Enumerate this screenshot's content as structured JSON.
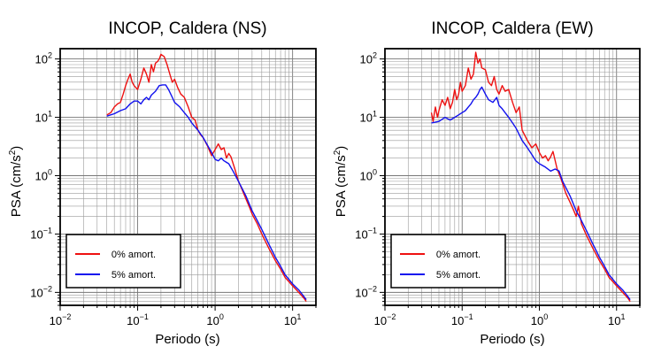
{
  "chart_data": [
    {
      "type": "line",
      "title": "INCOP, Caldera (NS)",
      "xlabel": "Periodo (s)",
      "ylabel": "PSA (cm/s",
      "ylabel_sup": "2",
      "ylabel_close": ")",
      "x_scale": "log",
      "y_scale": "log",
      "xlim": [
        0.01,
        20
      ],
      "ylim": [
        0.006,
        150
      ],
      "x_ticks": [
        {
          "value": 0.01,
          "base": "10",
          "exp": "−2"
        },
        {
          "value": 0.1,
          "base": "10",
          "exp": "−1"
        },
        {
          "value": 1,
          "base": "10",
          "exp": "0"
        },
        {
          "value": 10,
          "base": "10",
          "exp": "1"
        }
      ],
      "y_ticks": [
        {
          "value": 0.01,
          "base": "10",
          "exp": "−2"
        },
        {
          "value": 0.1,
          "base": "10",
          "exp": "−1"
        },
        {
          "value": 1,
          "base": "10",
          "exp": "0"
        },
        {
          "value": 10,
          "base": "10",
          "exp": "1"
        },
        {
          "value": 100,
          "base": "10",
          "exp": "2"
        }
      ],
      "grid": true,
      "legend": "bottom-left",
      "series": [
        {
          "name": "0% amort.",
          "color": "#ee1111",
          "x": [
            0.04,
            0.045,
            0.05,
            0.055,
            0.06,
            0.065,
            0.07,
            0.075,
            0.08,
            0.085,
            0.09,
            0.1,
            0.11,
            0.12,
            0.13,
            0.14,
            0.15,
            0.16,
            0.17,
            0.18,
            0.19,
            0.2,
            0.22,
            0.24,
            0.26,
            0.28,
            0.3,
            0.33,
            0.36,
            0.4,
            0.45,
            0.5,
            0.55,
            0.6,
            0.65,
            0.7,
            0.8,
            0.9,
            1.0,
            1.1,
            1.2,
            1.3,
            1.4,
            1.5,
            1.6,
            1.8,
            2.0,
            2.2,
            2.5,
            2.8,
            3,
            3.5,
            4,
            5,
            6,
            7,
            8,
            10,
            12,
            14,
            15
          ],
          "y": [
            11,
            12,
            15,
            17,
            18,
            25,
            35,
            45,
            55,
            40,
            35,
            30,
            45,
            70,
            55,
            40,
            80,
            60,
            85,
            90,
            100,
            120,
            110,
            80,
            55,
            40,
            45,
            32,
            25,
            22,
            15,
            10,
            9,
            6,
            5,
            4.5,
            3.2,
            2.2,
            2.8,
            3.5,
            2.8,
            3.0,
            2.0,
            2.4,
            2.1,
            1.3,
            0.8,
            0.6,
            0.4,
            0.28,
            0.22,
            0.15,
            0.1,
            0.055,
            0.035,
            0.025,
            0.018,
            0.013,
            0.01,
            0.008,
            0.007
          ]
        },
        {
          "name": "5% amort.",
          "color": "#1111ee",
          "x": [
            0.04,
            0.05,
            0.06,
            0.07,
            0.08,
            0.09,
            0.1,
            0.11,
            0.12,
            0.13,
            0.14,
            0.15,
            0.17,
            0.19,
            0.21,
            0.23,
            0.25,
            0.28,
            0.3,
            0.35,
            0.4,
            0.45,
            0.5,
            0.6,
            0.7,
            0.8,
            0.9,
            1.0,
            1.1,
            1.2,
            1.3,
            1.5,
            1.7,
            2.0,
            2.5,
            3,
            3.5,
            4,
            5,
            6,
            7,
            8,
            10,
            12,
            14,
            15
          ],
          "y": [
            10.5,
            11.5,
            13,
            14,
            17,
            19,
            19,
            17,
            20,
            22,
            20,
            24,
            28,
            35,
            36,
            36,
            30,
            22,
            18,
            15,
            12,
            10,
            8,
            6,
            4.5,
            3.3,
            2.5,
            1.9,
            1.8,
            2.0,
            1.8,
            1.6,
            1.2,
            0.8,
            0.45,
            0.25,
            0.17,
            0.12,
            0.065,
            0.04,
            0.028,
            0.02,
            0.014,
            0.011,
            0.0085,
            0.0075
          ]
        }
      ]
    },
    {
      "type": "line",
      "title": "INCOP, Caldera (EW)",
      "xlabel": "Periodo (s)",
      "ylabel": "PSA (cm/s",
      "ylabel_sup": "2",
      "ylabel_close": ")",
      "x_scale": "log",
      "y_scale": "log",
      "xlim": [
        0.01,
        20
      ],
      "ylim": [
        0.006,
        150
      ],
      "x_ticks": [
        {
          "value": 0.01,
          "base": "10",
          "exp": "−2"
        },
        {
          "value": 0.1,
          "base": "10",
          "exp": "−1"
        },
        {
          "value": 1,
          "base": "10",
          "exp": "0"
        },
        {
          "value": 10,
          "base": "10",
          "exp": "1"
        }
      ],
      "y_ticks": [
        {
          "value": 0.01,
          "base": "10",
          "exp": "−2"
        },
        {
          "value": 0.1,
          "base": "10",
          "exp": "−1"
        },
        {
          "value": 1,
          "base": "10",
          "exp": "0"
        },
        {
          "value": 10,
          "base": "10",
          "exp": "1"
        },
        {
          "value": 100,
          "base": "10",
          "exp": "2"
        }
      ],
      "grid": true,
      "legend": "bottom-left",
      "series": [
        {
          "name": "0% amort.",
          "color": "#ee1111",
          "x": [
            0.04,
            0.042,
            0.045,
            0.048,
            0.05,
            0.055,
            0.06,
            0.065,
            0.07,
            0.075,
            0.08,
            0.085,
            0.09,
            0.095,
            0.1,
            0.11,
            0.12,
            0.13,
            0.14,
            0.15,
            0.16,
            0.17,
            0.18,
            0.2,
            0.22,
            0.24,
            0.26,
            0.28,
            0.3,
            0.33,
            0.36,
            0.4,
            0.45,
            0.5,
            0.55,
            0.6,
            0.7,
            0.8,
            0.9,
            1.0,
            1.1,
            1.2,
            1.3,
            1.4,
            1.5,
            1.7,
            1.9,
            2.2,
            2.5,
            2.8,
            3,
            3.2,
            3.5,
            4,
            5,
            6,
            7,
            8,
            10,
            12,
            14,
            15
          ],
          "y": [
            12,
            8.5,
            15,
            10,
            13,
            20,
            16,
            22,
            14,
            18,
            30,
            20,
            25,
            40,
            28,
            35,
            70,
            45,
            55,
            130,
            85,
            100,
            70,
            65,
            40,
            35,
            50,
            30,
            25,
            35,
            28,
            30,
            18,
            12,
            15,
            6,
            4,
            3,
            3.5,
            2.5,
            2.0,
            2.2,
            1.8,
            2.1,
            2.6,
            1.3,
            0.9,
            0.5,
            0.35,
            0.25,
            0.2,
            0.3,
            0.15,
            0.1,
            0.055,
            0.035,
            0.025,
            0.018,
            0.013,
            0.01,
            0.008,
            0.007
          ]
        },
        {
          "name": "5% amort.",
          "color": "#1111ee",
          "x": [
            0.04,
            0.05,
            0.06,
            0.07,
            0.08,
            0.09,
            0.1,
            0.11,
            0.12,
            0.13,
            0.14,
            0.15,
            0.16,
            0.17,
            0.18,
            0.2,
            0.22,
            0.25,
            0.28,
            0.3,
            0.33,
            0.36,
            0.4,
            0.45,
            0.5,
            0.6,
            0.7,
            0.8,
            0.9,
            1.0,
            1.2,
            1.4,
            1.6,
            1.8,
            2.0,
            2.5,
            3,
            3.5,
            4,
            5,
            6,
            7,
            8,
            10,
            12,
            14,
            15
          ],
          "y": [
            8,
            8.5,
            10,
            9,
            10,
            11,
            12,
            13,
            15,
            17,
            20,
            22,
            25,
            30,
            33,
            25,
            20,
            18,
            22,
            16,
            14,
            12,
            10,
            8,
            6.5,
            4,
            3,
            2.3,
            1.8,
            1.6,
            1.4,
            1.2,
            1.3,
            1.2,
            0.8,
            0.45,
            0.25,
            0.17,
            0.12,
            0.065,
            0.04,
            0.028,
            0.02,
            0.014,
            0.011,
            0.0085,
            0.0075
          ]
        }
      ]
    }
  ]
}
